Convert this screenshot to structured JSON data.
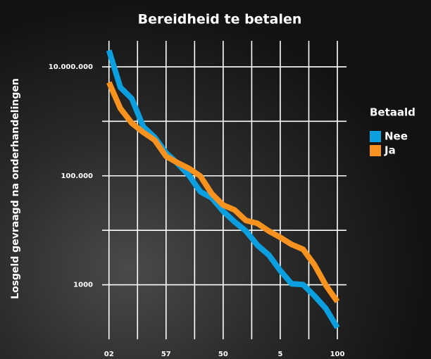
{
  "chart_data": {
    "type": "line",
    "title": "Bereidheid te betalen",
    "ylabel": "Losgeld gevraagd na onderhandelingen",
    "x": [
      0,
      5,
      10,
      15,
      20,
      25,
      30,
      35,
      40,
      45,
      50,
      55,
      60,
      65,
      70,
      75,
      80,
      85,
      90,
      95,
      100
    ],
    "series": [
      {
        "name": "Nee",
        "color": "#0b9fe0",
        "values": [
          20000000,
          4200000,
          2600000,
          800000,
          510000,
          264000,
          169000,
          102000,
          51300,
          39300,
          22300,
          14300,
          9700,
          5330,
          3520,
          1820,
          1040,
          1010,
          625,
          366,
          164
        ]
      },
      {
        "name": "Ja",
        "color": "#f7921e",
        "values": [
          5190000,
          1725000,
          923000,
          627000,
          452000,
          228000,
          174000,
          137000,
          98900,
          46900,
          29100,
          23700,
          15100,
          13400,
          9700,
          7410,
          5500,
          4470,
          2320,
          977,
          492
        ]
      }
    ],
    "xlim": [
      -3,
      104
    ],
    "xticks": [
      {
        "value": 0,
        "label": "02"
      },
      {
        "value": 25,
        "label": "57"
      },
      50,
      {
        "value": 75,
        "label": "5"
      },
      100
    ],
    "minor_xticks": [
      12.5,
      37.5,
      62.5,
      87.5
    ],
    "ylim": [
      100,
      30000000
    ],
    "log_y": true,
    "yticks": [
      1000,
      {
        "value": 100000,
        "label": "100.000"
      },
      {
        "value": 10000000,
        "label": "10.000.000"
      }
    ],
    "minor_yticks": [
      10000,
      1000000
    ],
    "grid": true,
    "legend": {
      "title": "Betaald",
      "position": "right"
    }
  }
}
